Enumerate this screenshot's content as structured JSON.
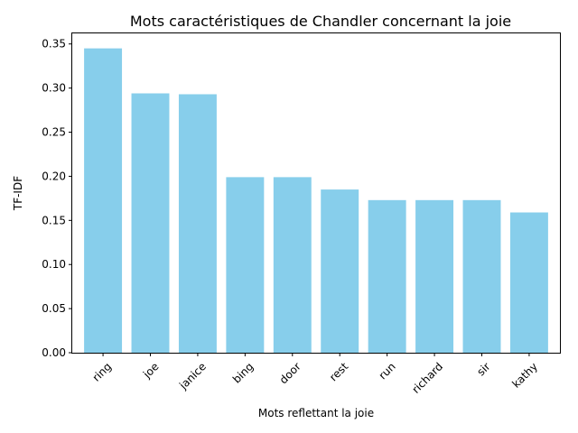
{
  "chart_data": {
    "type": "bar",
    "title": "Mots caractéristiques de Chandler concernant la joie",
    "xlabel": "Mots reflettant la joie",
    "ylabel": "TF-IDF",
    "categories": [
      "ring",
      "joe",
      "janice",
      "bing",
      "door",
      "rest",
      "run",
      "richard",
      "sir",
      "kathy"
    ],
    "values": [
      0.345,
      0.294,
      0.293,
      0.199,
      0.199,
      0.185,
      0.173,
      0.173,
      0.173,
      0.159
    ],
    "ylim": [
      0,
      0.362
    ],
    "yticks": [
      "0.00",
      "0.05",
      "0.10",
      "0.15",
      "0.20",
      "0.25",
      "0.30",
      "0.35"
    ],
    "grid": false,
    "x_tick_rotation": 45,
    "bar_color": "#87ceeb"
  }
}
